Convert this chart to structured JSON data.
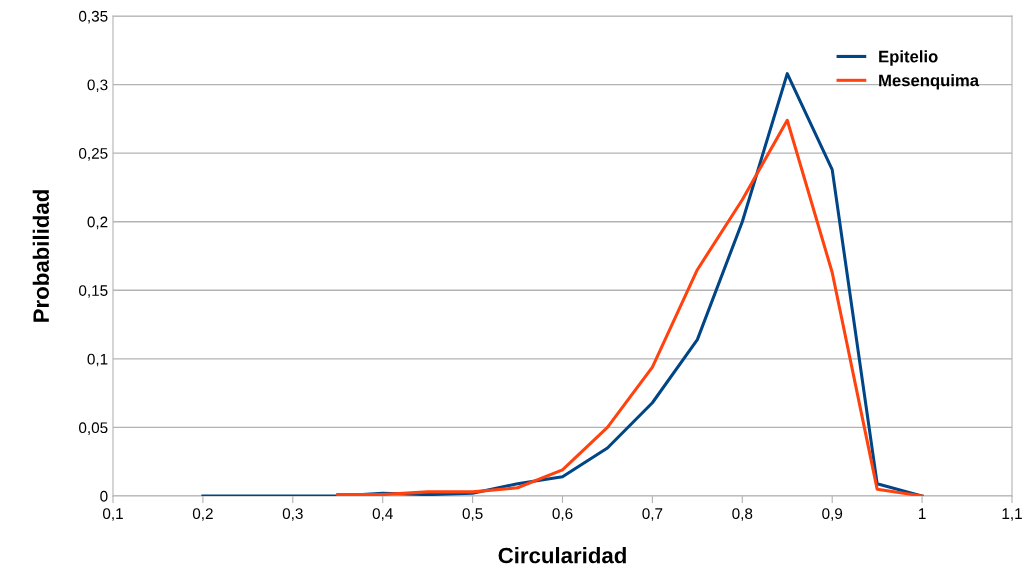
{
  "chart_data": {
    "type": "line",
    "xlabel": "Circularidad",
    "ylabel": "Probabilidad",
    "x": [
      0.2,
      0.25,
      0.3,
      0.35,
      0.4,
      0.45,
      0.5,
      0.55,
      0.6,
      0.65,
      0.7,
      0.75,
      0.8,
      0.85,
      0.9,
      0.95,
      1.0
    ],
    "series": [
      {
        "name": "Epitelio",
        "color": "#004586",
        "values": [
          0,
          0,
          0,
          0,
          0.002,
          0.001,
          0.002,
          0.009,
          0.014,
          0.035,
          0.068,
          0.114,
          0.2,
          0.308,
          0.238,
          0.009,
          0
        ]
      },
      {
        "name": "Mesenquima",
        "color": "#ff420e",
        "values": [
          null,
          null,
          null,
          0.001,
          0.001,
          0.003,
          0.003,
          0.006,
          0.019,
          0.05,
          0.094,
          0.165,
          0.216,
          0.274,
          0.163,
          0.005,
          0
        ]
      }
    ],
    "xlim": [
      0.1,
      1.1
    ],
    "xticks": [
      {
        "value": 0.1,
        "label": "0,1"
      },
      {
        "value": 0.2,
        "label": "0,2"
      },
      {
        "value": 0.3,
        "label": "0,3"
      },
      {
        "value": 0.4,
        "label": "0,4"
      },
      {
        "value": 0.5,
        "label": "0,5"
      },
      {
        "value": 0.6,
        "label": "0,6"
      },
      {
        "value": 0.7,
        "label": "0,7"
      },
      {
        "value": 0.8,
        "label": "0,8"
      },
      {
        "value": 0.9,
        "label": "0,9"
      },
      {
        "value": 1,
        "label": "1"
      },
      {
        "value": 1.1,
        "label": "1,1"
      }
    ],
    "ylim": [
      0,
      0.35
    ],
    "yticks": [
      0,
      {
        "value": 0.05,
        "label": "0,05"
      },
      {
        "value": 0.1,
        "label": "0,1"
      },
      {
        "value": 0.15,
        "label": "0,15"
      },
      {
        "value": 0.2,
        "label": "0,2"
      },
      {
        "value": 0.25,
        "label": "0,25"
      },
      {
        "value": 0.3,
        "label": "0,3"
      },
      {
        "value": 0.35,
        "label": "0,35"
      }
    ],
    "grid": "y",
    "legend": "top right",
    "marker": "none",
    "line_style": "solid"
  }
}
